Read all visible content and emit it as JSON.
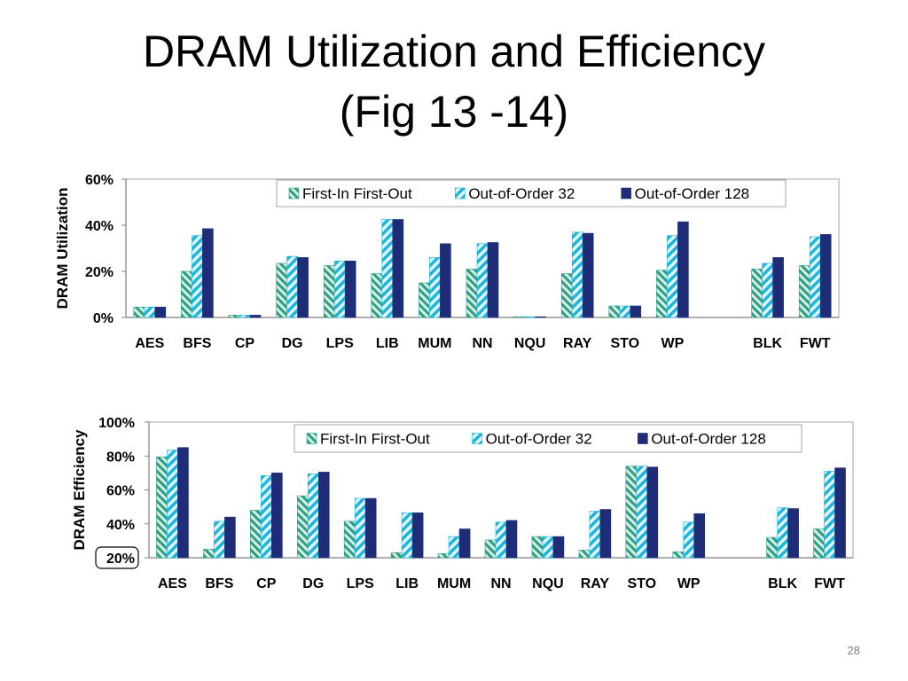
{
  "slide": {
    "title_line1": "DRAM Utilization and Efficiency",
    "title_line2": "(Fig 13 -14)",
    "page_number": "28"
  },
  "colors": {
    "fifo_fill": "#2e9e83",
    "fifo_bg": "#d7eee7",
    "ooo32_fill": "#1cb6dd",
    "ooo32_bg": "#e4f7fc",
    "ooo128": "#1f2d78"
  },
  "chart_data": [
    {
      "type": "bar",
      "ylabel": "DRAM Utilization",
      "ylim": [
        0,
        60
      ],
      "yticks": [
        "0%",
        "20%",
        "40%",
        "60%"
      ],
      "grid": false,
      "legend": "top",
      "categories": [
        "AES",
        "BFS",
        "CP",
        "DG",
        "LPS",
        "LIB",
        "MUM",
        "NN",
        "NQU",
        "RAY",
        "STO",
        "WP",
        "",
        "BLK",
        "FWT"
      ],
      "series": [
        {
          "name": "First-In First-Out",
          "values": [
            4.5,
            20,
            1,
            23.5,
            22.5,
            19,
            15,
            21,
            0,
            19,
            5,
            20.5,
            null,
            21,
            22.5
          ]
        },
        {
          "name": "Out-of-Order 32",
          "values": [
            4.5,
            35.5,
            1,
            26.5,
            24.5,
            42.5,
            26,
            32,
            0,
            37,
            5,
            35.5,
            null,
            23.5,
            35
          ]
        },
        {
          "name": "Out-of-Order 128",
          "values": [
            4.5,
            38.5,
            1,
            26,
            24.5,
            42.5,
            32,
            32.5,
            0,
            36.5,
            5,
            41.5,
            null,
            26,
            36
          ]
        }
      ]
    },
    {
      "type": "bar",
      "ylabel": "DRAM Efficiency",
      "ylim": [
        20,
        100
      ],
      "yticks": [
        "20%",
        "40%",
        "60%",
        "80%",
        "100%"
      ],
      "grid": false,
      "legend": "top",
      "categories": [
        "AES",
        "BFS",
        "CP",
        "DG",
        "LPS",
        "LIB",
        "MUM",
        "NN",
        "NQU",
        "RAY",
        "STO",
        "WP",
        "",
        "BLK",
        "FWT"
      ],
      "series": [
        {
          "name": "First-In First-Out",
          "values": [
            79.5,
            25,
            48,
            56.5,
            41.5,
            23,
            22.5,
            30.5,
            32.5,
            24.5,
            74,
            23.5,
            null,
            32,
            37
          ]
        },
        {
          "name": "Out-of-Order 32",
          "values": [
            83.5,
            41.5,
            68.5,
            69.5,
            55,
            46.5,
            32.5,
            41,
            32.5,
            47.5,
            74,
            41,
            null,
            49.5,
            71
          ]
        },
        {
          "name": "Out-of-Order 128",
          "values": [
            85,
            44,
            70,
            70.5,
            55,
            46.5,
            37,
            42,
            32.5,
            48.5,
            73.5,
            46,
            null,
            49,
            73
          ]
        }
      ]
    }
  ]
}
